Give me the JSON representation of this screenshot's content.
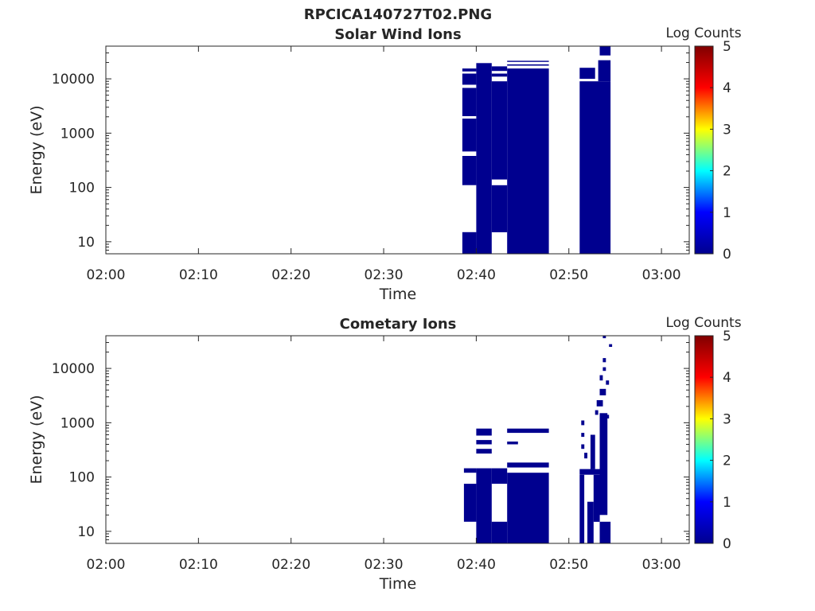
{
  "figure_title": "RPCICA140727T02.PNG",
  "colors": {
    "data_fill": "#00008f",
    "axis": "#262626",
    "colormap": [
      "#00008f",
      "#0000ff",
      "#00ffff",
      "#ffff00",
      "#ff0000",
      "#800000"
    ]
  },
  "chart_data": [
    {
      "type": "heatmap",
      "title": "Solar Wind Ions",
      "xlabel": "Time",
      "ylabel": "Energy (eV)",
      "yscale": "log",
      "xlim": [
        "02:00",
        "03:03"
      ],
      "ylim": [
        6,
        40000
      ],
      "x_ticks": [
        "02:00",
        "02:10",
        "02:20",
        "02:30",
        "02:40",
        "02:50",
        "03:00"
      ],
      "y_ticks": [
        "10",
        "100",
        "1000",
        "10000"
      ],
      "colorbar": {
        "label": "Log Counts",
        "range": [
          0,
          5
        ],
        "ticks": [
          "0",
          "1",
          "2",
          "3",
          "4",
          "5"
        ]
      },
      "cells": [
        {
          "t0": "02:38:30",
          "t1": "02:40:00",
          "e0": 6,
          "e1": 15
        },
        {
          "t0": "02:38:30",
          "t1": "02:40:00",
          "e0": 110,
          "e1": 380
        },
        {
          "t0": "02:38:30",
          "t1": "02:40:00",
          "e0": 460,
          "e1": 1850
        },
        {
          "t0": "02:38:30",
          "t1": "02:40:00",
          "e0": 2050,
          "e1": 6800
        },
        {
          "t0": "02:38:30",
          "t1": "02:40:00",
          "e0": 7800,
          "e1": 12500
        },
        {
          "t0": "02:38:30",
          "t1": "02:40:00",
          "e0": 13700,
          "e1": 15500
        },
        {
          "t0": "02:40:00",
          "t1": "02:41:40",
          "e0": 6,
          "e1": 19500
        },
        {
          "t0": "02:41:40",
          "t1": "02:43:20",
          "e0": 15,
          "e1": 110
        },
        {
          "t0": "02:41:40",
          "t1": "02:43:20",
          "e0": 140,
          "e1": 9000
        },
        {
          "t0": "02:41:40",
          "t1": "02:43:20",
          "e0": 11000,
          "e1": 12500
        },
        {
          "t0": "02:41:40",
          "t1": "02:43:20",
          "e0": 14000,
          "e1": 17000
        },
        {
          "t0": "02:43:20",
          "t1": "02:47:50",
          "e0": 6,
          "e1": 15500
        },
        {
          "t0": "02:43:20",
          "t1": "02:47:50",
          "e0": 17500,
          "e1": 18500
        },
        {
          "t0": "02:43:20",
          "t1": "02:47:50",
          "e0": 20500,
          "e1": 21500
        },
        {
          "t0": "02:51:10",
          "t1": "02:54:30",
          "e0": 6,
          "e1": 9000
        },
        {
          "t0": "02:51:10",
          "t1": "02:52:50",
          "e0": 10000,
          "e1": 16000
        },
        {
          "t0": "02:53:10",
          "t1": "02:54:30",
          "e0": 9000,
          "e1": 22000
        },
        {
          "t0": "02:53:20",
          "t1": "02:54:30",
          "e0": 27000,
          "e1": 40000
        }
      ]
    },
    {
      "type": "heatmap",
      "title": "Cometary Ions",
      "xlabel": "Time",
      "ylabel": "Energy (eV)",
      "yscale": "log",
      "xlim": [
        "02:00",
        "03:03"
      ],
      "ylim": [
        6,
        40000
      ],
      "x_ticks": [
        "02:00",
        "02:10",
        "02:20",
        "02:30",
        "02:40",
        "02:50",
        "03:00"
      ],
      "y_ticks": [
        "10",
        "100",
        "1000",
        "10000"
      ],
      "colorbar": {
        "label": "Log Counts",
        "range": [
          0,
          5
        ],
        "ticks": [
          "0",
          "1",
          "2",
          "3",
          "4",
          "5"
        ]
      },
      "cells": [
        {
          "t0": "02:38:40",
          "t1": "02:40:00",
          "e0": 15,
          "e1": 75
        },
        {
          "t0": "02:38:40",
          "t1": "02:40:00",
          "e0": 120,
          "e1": 145
        },
        {
          "t0": "02:40:00",
          "t1": "02:41:40",
          "e0": 6,
          "e1": 145
        },
        {
          "t0": "02:41:40",
          "t1": "02:43:20",
          "e0": 6,
          "e1": 15
        },
        {
          "t0": "02:41:40",
          "t1": "02:43:20",
          "e0": 75,
          "e1": 145
        },
        {
          "t0": "02:43:20",
          "t1": "02:47:50",
          "e0": 6,
          "e1": 120
        },
        {
          "t0": "02:43:20",
          "t1": "02:47:50",
          "e0": 150,
          "e1": 185
        },
        {
          "t0": "02:40:00",
          "t1": "02:41:40",
          "e0": 270,
          "e1": 330
        },
        {
          "t0": "02:40:00",
          "t1": "02:41:40",
          "e0": 400,
          "e1": 480
        },
        {
          "t0": "02:40:00",
          "t1": "02:41:40",
          "e0": 580,
          "e1": 780
        },
        {
          "t0": "02:43:20",
          "t1": "02:44:30",
          "e0": 400,
          "e1": 450
        },
        {
          "t0": "02:43:20",
          "t1": "02:47:50",
          "e0": 650,
          "e1": 780
        },
        {
          "t0": "02:51:10",
          "t1": "02:51:40",
          "e0": 6,
          "e1": 110
        },
        {
          "t0": "02:52:00",
          "t1": "02:52:40",
          "e0": 6,
          "e1": 35
        },
        {
          "t0": "02:52:40",
          "t1": "02:53:20",
          "e0": 15,
          "e1": 110
        },
        {
          "t0": "02:53:20",
          "t1": "02:54:30",
          "e0": 6,
          "e1": 15
        },
        {
          "t0": "02:53:20",
          "t1": "02:54:10",
          "e0": 20,
          "e1": 1500
        },
        {
          "t0": "02:51:10",
          "t1": "02:53:20",
          "e0": 110,
          "e1": 140
        },
        {
          "t0": "02:52:20",
          "t1": "02:52:50",
          "e0": 140,
          "e1": 600
        },
        {
          "t0": "02:51:20",
          "t1": "02:51:40",
          "e0": 900,
          "e1": 1100
        },
        {
          "t0": "02:51:20",
          "t1": "02:51:40",
          "e0": 330,
          "e1": 400
        },
        {
          "t0": "02:51:40",
          "t1": "02:52:00",
          "e0": 220,
          "e1": 280
        },
        {
          "t0": "02:53:00",
          "t1": "02:53:40",
          "e0": 2000,
          "e1": 2600
        },
        {
          "t0": "02:53:20",
          "t1": "02:54:00",
          "e0": 3200,
          "e1": 4200
        },
        {
          "t0": "02:53:40",
          "t1": "02:54:20",
          "e0": 1200,
          "e1": 1400
        },
        {
          "t0": "02:53:20",
          "t1": "02:53:40",
          "e0": 6000,
          "e1": 7500
        },
        {
          "t0": "02:53:40",
          "t1": "02:54:00",
          "e0": 9000,
          "e1": 10500
        },
        {
          "t0": "02:53:40",
          "t1": "02:54:00",
          "e0": 13000,
          "e1": 15500
        },
        {
          "t0": "02:54:00",
          "t1": "02:54:20",
          "e0": 5000,
          "e1": 6000
        },
        {
          "t0": "02:54:20",
          "t1": "02:54:40",
          "e0": 25000,
          "e1": 28000
        },
        {
          "t0": "02:53:40",
          "t1": "02:54:00",
          "e0": 36000,
          "e1": 40000
        },
        {
          "t0": "02:52:50",
          "t1": "02:53:10",
          "e0": 1400,
          "e1": 1700
        },
        {
          "t0": "02:51:20",
          "t1": "02:51:40",
          "e0": 550,
          "e1": 650
        }
      ]
    }
  ]
}
